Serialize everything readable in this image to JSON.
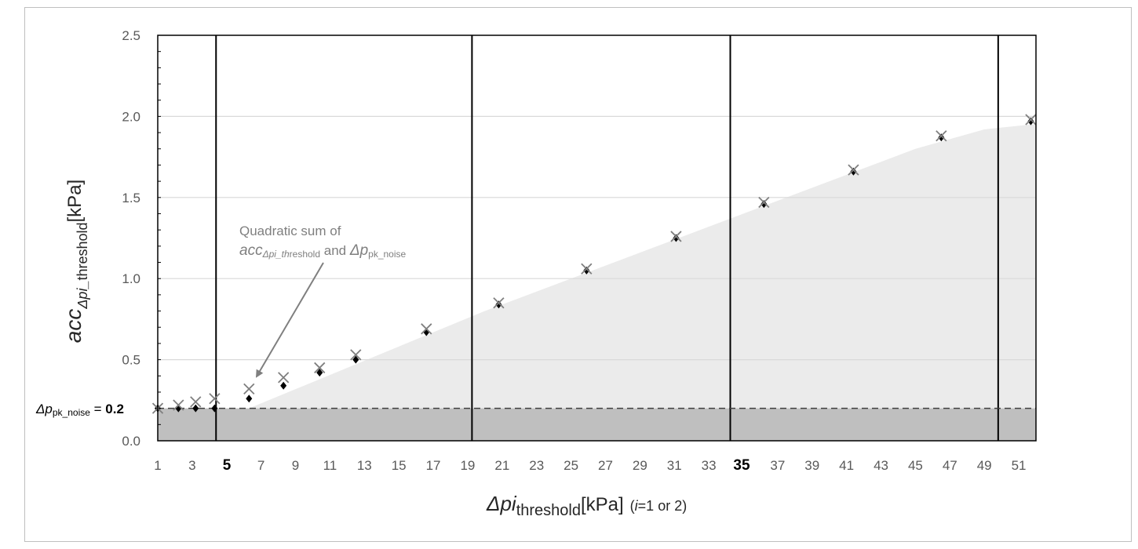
{
  "chart_data": {
    "type": "scatter",
    "title": "",
    "xlabel": {
      "main": "Δpi",
      "sub": "threshold",
      "unit": "[kPa]",
      "note_italic": "i",
      "note": "=1 or 2)",
      "note_open": "("
    },
    "ylabel": {
      "main": "acc",
      "sub_italic": "Δpi_",
      "sub": "threshold",
      "unit": "[kPa]"
    },
    "ylim": [
      0,
      2.5
    ],
    "xlim": [
      1,
      52
    ],
    "y_ticks": [
      "0.0",
      "0.5",
      "1.0",
      "1.5",
      "2.0",
      "2.5"
    ],
    "y_tick_values": [
      0,
      0.5,
      1.0,
      1.5,
      2.0,
      2.5
    ],
    "x_ticks": [
      "1",
      "3",
      "5",
      "7",
      "9",
      "11",
      "13",
      "15",
      "17",
      "19",
      "21",
      "23",
      "25",
      "27",
      "29",
      "31",
      "33",
      "35",
      "37",
      "39",
      "41",
      "43",
      "45",
      "47",
      "49",
      "51"
    ],
    "x_tick_values": [
      1,
      3,
      5,
      7,
      9,
      11,
      13,
      15,
      17,
      19,
      21,
      23,
      25,
      27,
      29,
      31,
      33,
      35,
      37,
      39,
      41,
      43,
      45,
      47,
      49,
      51
    ],
    "x_ticks_bold": [
      "5",
      "35"
    ],
    "grid": "horizontal",
    "vertical_lines_x": [
      5,
      20,
      35,
      49.6
    ],
    "noise_level": {
      "value": 0.2,
      "label_prefix": "Δp",
      "label_sub": "pk_noise",
      "label_suffix": " = ",
      "label_value": "0.2"
    },
    "series": [
      {
        "marker": "diamond",
        "color": "#000000",
        "x": [
          1,
          2.2,
          3.2,
          4.3,
          6.3,
          8.3,
          10.4,
          12.5,
          16.6,
          20.8,
          25.9,
          31.1,
          36.2,
          41.4,
          46.5,
          51.7
        ],
        "y": [
          0.2,
          0.2,
          0.2,
          0.2,
          0.26,
          0.34,
          0.42,
          0.5,
          0.67,
          0.84,
          1.05,
          1.25,
          1.46,
          1.66,
          1.87,
          1.97
        ]
      },
      {
        "marker": "x",
        "color": "#7f7f7f",
        "x": [
          1,
          2.2,
          3.2,
          4.3,
          6.3,
          8.3,
          10.4,
          12.5,
          16.6,
          20.8,
          25.9,
          31.1,
          36.2,
          41.4,
          46.5,
          51.7
        ],
        "y": [
          0.2,
          0.22,
          0.24,
          0.26,
          0.32,
          0.39,
          0.45,
          0.53,
          0.69,
          0.85,
          1.06,
          1.26,
          1.47,
          1.67,
          1.88,
          1.98
        ]
      }
    ],
    "shaded_area": {
      "x": [
        6.3,
        20,
        35,
        45,
        49,
        51.7
      ],
      "y": [
        0.2,
        0.8,
        1.4,
        1.8,
        1.92,
        1.95
      ]
    },
    "annotation": {
      "line1": "Quadratic sum of",
      "line2_main": "acc",
      "line2_sub": "Δpi_th",
      "line2_sub2": "reshold",
      "line2_mid": " and ",
      "line2_p": "Δp",
      "line2_psub": "pk_noise",
      "arrow_to": [
        6.8,
        0.35
      ]
    },
    "colors": {
      "light_fill": "#ebebeb",
      "dark_fill": "#bfbfbf",
      "gridline": "#d9d9d9",
      "axis": "#000000"
    }
  }
}
